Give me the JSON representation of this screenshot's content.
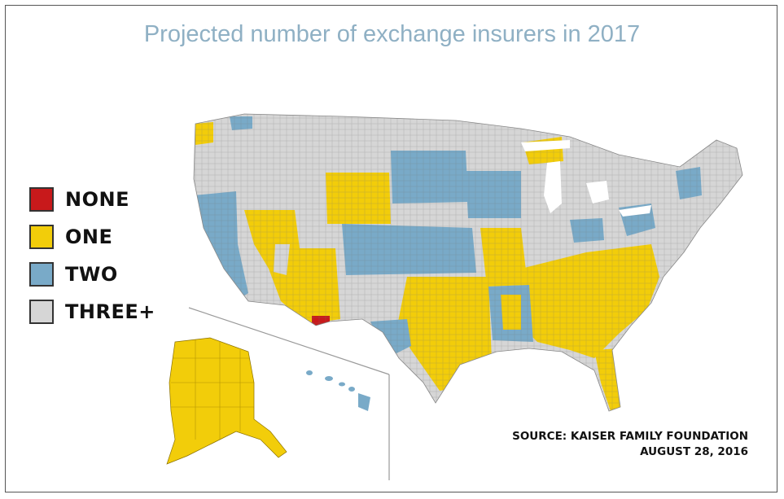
{
  "title": "Projected number of exchange insurers in 2017",
  "legend": [
    {
      "key": "none",
      "label": "NONE",
      "color": "#c8191b"
    },
    {
      "key": "one",
      "label": "ONE",
      "color": "#f2cd0a"
    },
    {
      "key": "two",
      "label": "TWO",
      "color": "#79aac8"
    },
    {
      "key": "three",
      "label": "THREE+",
      "color": "#d6d6d6"
    }
  ],
  "source": {
    "line1": "SOURCE: KAISER FAMILY FOUNDATION",
    "line2": "AUGUST 28, 2016"
  }
}
